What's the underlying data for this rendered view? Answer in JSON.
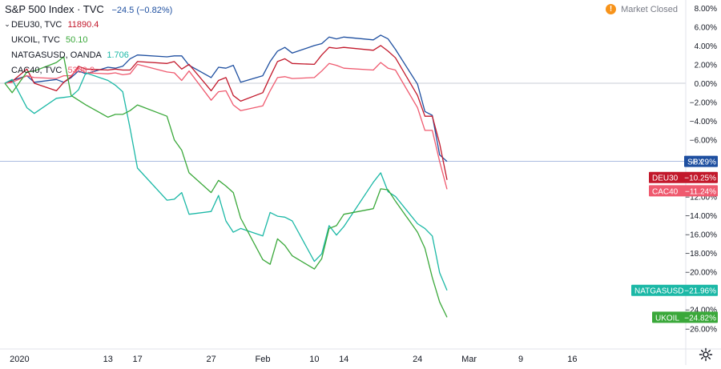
{
  "legend": {
    "title": "S&P 500 Index · TVC",
    "title_change": "−24.5 (−0.82%)",
    "title_change_color": "#1e4fa0",
    "rows": [
      {
        "label": "DEU30, TVC",
        "value": "11890.4",
        "color": "#c2182b"
      },
      {
        "label": "UKOIL, TVC",
        "value": "50.10",
        "color": "#3aa83a"
      },
      {
        "label": "NATGASUSD, OANDA",
        "value": "1.706",
        "color": "#1bb8a6"
      },
      {
        "label": "CAC40, TVC",
        "value": "5309.9",
        "color": "#ef5a6f"
      }
    ]
  },
  "status": {
    "icon": "exclamation-icon",
    "text": "Market Closed"
  },
  "settings_icon": "gear-icon",
  "collapse_icon": "chevron-down-icon",
  "chart_data": {
    "type": "line",
    "title": "",
    "xlabel": "",
    "ylabel": "",
    "y_unit": "%",
    "ylim": [
      -27,
      8.3
    ],
    "y_ticks": [
      8,
      6,
      4,
      2,
      0,
      -2,
      -4,
      -6,
      -8,
      -10,
      -12,
      -14,
      -16,
      -18,
      -20,
      -22,
      -24,
      -26
    ],
    "y_tick_labels": [
      "8.00%",
      "6.00%",
      "4.00%",
      "2.00%",
      "0.00%",
      "−2.00%",
      "−4.00%",
      "−6.00%",
      "−8.00%",
      "−10.00%",
      "−12.00%",
      "−14.00%",
      "−16.00%",
      "−18.00%",
      "−20.00%",
      "−22.00%",
      "−24.00%",
      "−26.00%"
    ],
    "x_axis": {
      "range": [
        "2019-12-30",
        "2020-03-19"
      ],
      "ticks": [
        {
          "date": "2020-01-01",
          "label": "2020"
        },
        {
          "date": "2020-01-13",
          "label": "13"
        },
        {
          "date": "2020-01-17",
          "label": "17"
        },
        {
          "date": "2020-01-27",
          "label": "27"
        },
        {
          "date": "2020-02-03",
          "label": "Feb"
        },
        {
          "date": "2020-02-10",
          "label": "10"
        },
        {
          "date": "2020-02-14",
          "label": "14"
        },
        {
          "date": "2020-02-24",
          "label": "24"
        },
        {
          "date": "2020-03-02",
          "label": "Mar"
        },
        {
          "date": "2020-03-09",
          "label": "9"
        },
        {
          "date": "2020-03-16",
          "label": "16"
        }
      ]
    },
    "grid": false,
    "zero_line": true,
    "series": [
      {
        "name": "SPX",
        "color": "#1e4fa0",
        "last_label": "−8.29%",
        "points": [
          [
            "2019-12-30",
            0.0
          ],
          [
            "2019-12-31",
            0.3
          ],
          [
            "2020-01-02",
            0.8
          ],
          [
            "2020-01-03",
            0.1
          ],
          [
            "2020-01-06",
            0.4
          ],
          [
            "2020-01-07",
            0.1
          ],
          [
            "2020-01-08",
            0.6
          ],
          [
            "2020-01-09",
            1.3
          ],
          [
            "2020-01-10",
            1.0
          ],
          [
            "2020-01-13",
            1.7
          ],
          [
            "2020-01-14",
            1.6
          ],
          [
            "2020-01-15",
            1.8
          ],
          [
            "2020-01-16",
            2.6
          ],
          [
            "2020-01-17",
            3.0
          ],
          [
            "2020-01-21",
            2.8
          ],
          [
            "2020-01-22",
            2.9
          ],
          [
            "2020-01-23",
            2.9
          ],
          [
            "2020-01-24",
            1.9
          ],
          [
            "2020-01-27",
            0.6
          ],
          [
            "2020-01-28",
            1.7
          ],
          [
            "2020-01-29",
            1.6
          ],
          [
            "2020-01-30",
            1.9
          ],
          [
            "2020-01-31",
            0.1
          ],
          [
            "2020-02-03",
            0.8
          ],
          [
            "2020-02-04",
            2.3
          ],
          [
            "2020-02-05",
            3.4
          ],
          [
            "2020-02-06",
            3.8
          ],
          [
            "2020-02-07",
            3.2
          ],
          [
            "2020-02-10",
            4.0
          ],
          [
            "2020-02-11",
            4.2
          ],
          [
            "2020-02-12",
            4.9
          ],
          [
            "2020-02-13",
            4.7
          ],
          [
            "2020-02-14",
            4.9
          ],
          [
            "2020-02-18",
            4.6
          ],
          [
            "2020-02-19",
            5.1
          ],
          [
            "2020-02-20",
            4.7
          ],
          [
            "2020-02-21",
            3.6
          ],
          [
            "2020-02-24",
            -0.1
          ],
          [
            "2020-02-25",
            -3.0
          ],
          [
            "2020-02-26",
            -3.4
          ],
          [
            "2020-02-27",
            -7.6
          ],
          [
            "2020-02-28",
            -8.29
          ]
        ]
      },
      {
        "name": "DEU30",
        "color": "#c2182b",
        "last_label": "−10.25%",
        "points": [
          [
            "2019-12-30",
            0.0
          ],
          [
            "2019-12-31",
            0.2
          ],
          [
            "2020-01-02",
            1.5
          ],
          [
            "2020-01-03",
            0.0
          ],
          [
            "2020-01-06",
            -0.8
          ],
          [
            "2020-01-07",
            0.1
          ],
          [
            "2020-01-08",
            0.7
          ],
          [
            "2020-01-09",
            1.8
          ],
          [
            "2020-01-10",
            1.5
          ],
          [
            "2020-01-13",
            1.4
          ],
          [
            "2020-01-14",
            1.5
          ],
          [
            "2020-01-15",
            1.4
          ],
          [
            "2020-01-16",
            1.4
          ],
          [
            "2020-01-17",
            2.3
          ],
          [
            "2020-01-21",
            2.1
          ],
          [
            "2020-01-22",
            2.3
          ],
          [
            "2020-01-23",
            1.5
          ],
          [
            "2020-01-24",
            2.0
          ],
          [
            "2020-01-27",
            -0.8
          ],
          [
            "2020-01-28",
            0.3
          ],
          [
            "2020-01-29",
            0.6
          ],
          [
            "2020-01-30",
            -1.3
          ],
          [
            "2020-01-31",
            -1.9
          ],
          [
            "2020-02-03",
            -1.0
          ],
          [
            "2020-02-04",
            0.7
          ],
          [
            "2020-02-05",
            2.3
          ],
          [
            "2020-02-06",
            2.6
          ],
          [
            "2020-02-07",
            2.1
          ],
          [
            "2020-02-10",
            2.0
          ],
          [
            "2020-02-11",
            3.0
          ],
          [
            "2020-02-12",
            3.8
          ],
          [
            "2020-02-13",
            3.7
          ],
          [
            "2020-02-14",
            3.8
          ],
          [
            "2020-02-18",
            3.5
          ],
          [
            "2020-02-19",
            4.0
          ],
          [
            "2020-02-20",
            3.4
          ],
          [
            "2020-02-21",
            2.7
          ],
          [
            "2020-02-24",
            -1.3
          ],
          [
            "2020-02-25",
            -3.5
          ],
          [
            "2020-02-26",
            -3.5
          ],
          [
            "2020-02-27",
            -6.4
          ],
          [
            "2020-02-28",
            -10.25
          ]
        ]
      },
      {
        "name": "CAC40",
        "color": "#ef5a6f",
        "last_label": "−11.24%",
        "points": [
          [
            "2019-12-30",
            0.0
          ],
          [
            "2019-12-31",
            0.1
          ],
          [
            "2020-01-02",
            0.8
          ],
          [
            "2020-01-03",
            0.6
          ],
          [
            "2020-01-06",
            0.5
          ],
          [
            "2020-01-07",
            0.8
          ],
          [
            "2020-01-08",
            0.8
          ],
          [
            "2020-01-09",
            1.6
          ],
          [
            "2020-01-10",
            1.1
          ],
          [
            "2020-01-13",
            1.0
          ],
          [
            "2020-01-14",
            1.1
          ],
          [
            "2020-01-15",
            0.9
          ],
          [
            "2020-01-16",
            1.0
          ],
          [
            "2020-01-17",
            2.0
          ],
          [
            "2020-01-21",
            1.2
          ],
          [
            "2020-01-22",
            1.1
          ],
          [
            "2020-01-23",
            0.3
          ],
          [
            "2020-01-24",
            1.3
          ],
          [
            "2020-01-27",
            -1.8
          ],
          [
            "2020-01-28",
            -0.9
          ],
          [
            "2020-01-29",
            -0.8
          ],
          [
            "2020-01-30",
            -2.3
          ],
          [
            "2020-01-31",
            -2.9
          ],
          [
            "2020-02-03",
            -2.4
          ],
          [
            "2020-02-04",
            -0.8
          ],
          [
            "2020-02-05",
            0.6
          ],
          [
            "2020-02-06",
            0.7
          ],
          [
            "2020-02-07",
            0.5
          ],
          [
            "2020-02-10",
            0.6
          ],
          [
            "2020-02-11",
            1.3
          ],
          [
            "2020-02-12",
            2.1
          ],
          [
            "2020-02-13",
            1.9
          ],
          [
            "2020-02-14",
            1.6
          ],
          [
            "2020-02-18",
            1.4
          ],
          [
            "2020-02-19",
            2.2
          ],
          [
            "2020-02-20",
            1.6
          ],
          [
            "2020-02-21",
            1.4
          ],
          [
            "2020-02-24",
            -2.6
          ],
          [
            "2020-02-25",
            -5.0
          ],
          [
            "2020-02-26",
            -5.0
          ],
          [
            "2020-02-27",
            -8.3
          ],
          [
            "2020-02-28",
            -11.24
          ]
        ]
      },
      {
        "name": "NATGASUSD",
        "color": "#1bb8a6",
        "last_label": "−21.96%",
        "points": [
          [
            "2019-12-30",
            0.0
          ],
          [
            "2019-12-31",
            0.4
          ],
          [
            "2020-01-02",
            -2.6
          ],
          [
            "2020-01-03",
            -3.2
          ],
          [
            "2020-01-06",
            -1.6
          ],
          [
            "2020-01-07",
            -1.5
          ],
          [
            "2020-01-08",
            -1.4
          ],
          [
            "2020-01-09",
            -0.7
          ],
          [
            "2020-01-10",
            1.1
          ],
          [
            "2020-01-13",
            0.3
          ],
          [
            "2020-01-14",
            -0.2
          ],
          [
            "2020-01-15",
            -0.9
          ],
          [
            "2020-01-16",
            -4.8
          ],
          [
            "2020-01-17",
            -9.0
          ],
          [
            "2020-01-21",
            -12.4
          ],
          [
            "2020-01-22",
            -12.3
          ],
          [
            "2020-01-23",
            -11.6
          ],
          [
            "2020-01-24",
            -13.9
          ],
          [
            "2020-01-27",
            -13.6
          ],
          [
            "2020-01-28",
            -11.9
          ],
          [
            "2020-01-29",
            -14.6
          ],
          [
            "2020-01-30",
            -15.8
          ],
          [
            "2020-01-31",
            -15.4
          ],
          [
            "2020-02-03",
            -16.2
          ],
          [
            "2020-02-04",
            -13.7
          ],
          [
            "2020-02-05",
            -14.1
          ],
          [
            "2020-02-06",
            -14.2
          ],
          [
            "2020-02-07",
            -14.6
          ],
          [
            "2020-02-10",
            -18.9
          ],
          [
            "2020-02-11",
            -18.1
          ],
          [
            "2020-02-12",
            -15.1
          ],
          [
            "2020-02-13",
            -16.1
          ],
          [
            "2020-02-14",
            -15.2
          ],
          [
            "2020-02-18",
            -10.5
          ],
          [
            "2020-02-19",
            -9.5
          ],
          [
            "2020-02-20",
            -11.5
          ],
          [
            "2020-02-21",
            -12.0
          ],
          [
            "2020-02-24",
            -14.9
          ],
          [
            "2020-02-25",
            -15.4
          ],
          [
            "2020-02-26",
            -16.2
          ],
          [
            "2020-02-27",
            -20.1
          ],
          [
            "2020-02-28",
            -21.96
          ]
        ]
      },
      {
        "name": "UKOIL",
        "color": "#3aa83a",
        "last_label": "−24.82%",
        "points": [
          [
            "2019-12-30",
            0.0
          ],
          [
            "2019-12-31",
            -1.0
          ],
          [
            "2020-01-02",
            1.2
          ],
          [
            "2020-01-03",
            1.3
          ],
          [
            "2020-01-06",
            2.2
          ],
          [
            "2020-01-07",
            2.8
          ],
          [
            "2020-01-08",
            -1.3
          ],
          [
            "2020-01-09",
            -1.8
          ],
          [
            "2020-01-10",
            -2.3
          ],
          [
            "2020-01-13",
            -3.6
          ],
          [
            "2020-01-14",
            -3.3
          ],
          [
            "2020-01-15",
            -3.3
          ],
          [
            "2020-01-16",
            -2.9
          ],
          [
            "2020-01-17",
            -2.3
          ],
          [
            "2020-01-21",
            -3.5
          ],
          [
            "2020-01-22",
            -6.0
          ],
          [
            "2020-01-23",
            -7.1
          ],
          [
            "2020-01-24",
            -9.5
          ],
          [
            "2020-01-27",
            -11.6
          ],
          [
            "2020-01-28",
            -10.3
          ],
          [
            "2020-01-29",
            -10.9
          ],
          [
            "2020-01-30",
            -11.6
          ],
          [
            "2020-01-31",
            -14.3
          ],
          [
            "2020-02-03",
            -18.7
          ],
          [
            "2020-02-04",
            -19.2
          ],
          [
            "2020-02-05",
            -16.5
          ],
          [
            "2020-02-06",
            -17.2
          ],
          [
            "2020-02-07",
            -18.3
          ],
          [
            "2020-02-10",
            -19.7
          ],
          [
            "2020-02-11",
            -18.6
          ],
          [
            "2020-02-12",
            -15.4
          ],
          [
            "2020-02-13",
            -15.1
          ],
          [
            "2020-02-14",
            -13.9
          ],
          [
            "2020-02-18",
            -13.3
          ],
          [
            "2020-02-19",
            -11.2
          ],
          [
            "2020-02-20",
            -11.3
          ],
          [
            "2020-02-21",
            -12.5
          ],
          [
            "2020-02-24",
            -15.8
          ],
          [
            "2020-02-25",
            -17.5
          ],
          [
            "2020-02-26",
            -20.6
          ],
          [
            "2020-02-27",
            -23.2
          ],
          [
            "2020-02-28",
            -24.82
          ]
        ]
      }
    ]
  }
}
